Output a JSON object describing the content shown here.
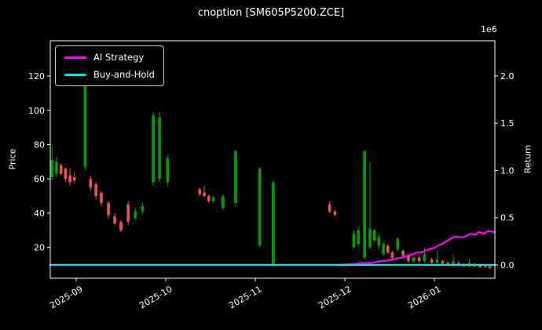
{
  "chart_data": {
    "type": "candlestick",
    "title": "cnoption [SM605P5200.ZCE]",
    "ylabel": "Price",
    "y2label": "Return",
    "y2_offset_label": "1e6",
    "x_tick_labels": [
      "2025-09",
      "2025-10",
      "2025-11",
      "2025-12",
      "2026-01"
    ],
    "x_tick_positions": [
      0,
      1,
      2,
      3,
      4
    ],
    "xlim": [
      -0.29,
      4.675
    ],
    "price_ticks": [
      20,
      40,
      60,
      80,
      100,
      120
    ],
    "price_ylim": [
      2,
      140.6
    ],
    "return_ticks": [
      0.0,
      0.5,
      1.0,
      1.5,
      2.0
    ],
    "return_ylim": [
      -0.141,
      2.373
    ],
    "grid": false,
    "legend_position": "upper left",
    "colors": {
      "background": "#000000",
      "text": "#ffffff",
      "spine": "#ffffff",
      "up": "#00a000",
      "down": "#ef5350"
    },
    "candle_fields": [
      "x",
      "open",
      "high",
      "low",
      "close"
    ],
    "candles": [
      [
        -0.27,
        61,
        80,
        59,
        71
      ],
      [
        -0.22,
        63,
        73,
        61,
        70
      ],
      [
        -0.17,
        68,
        69,
        62,
        63
      ],
      [
        -0.12,
        66,
        67,
        58,
        60
      ],
      [
        -0.07,
        62,
        66,
        56,
        58
      ],
      [
        -0.02,
        61,
        64,
        57,
        59
      ],
      [
        0.1,
        67,
        119,
        65,
        117
      ],
      [
        0.16,
        60,
        62,
        53,
        55
      ],
      [
        0.22,
        57,
        58,
        48,
        50
      ],
      [
        0.28,
        52,
        53,
        44,
        46
      ],
      [
        0.36,
        46,
        47,
        37,
        39
      ],
      [
        0.43,
        38,
        40,
        33,
        34
      ],
      [
        0.5,
        35,
        36,
        29,
        30
      ],
      [
        0.58,
        45,
        47,
        33,
        35
      ],
      [
        0.66,
        37,
        43,
        36,
        41
      ],
      [
        0.74,
        41,
        46,
        39,
        44
      ],
      [
        0.86,
        58,
        99,
        56,
        97
      ],
      [
        0.93,
        60,
        99,
        58,
        96
      ],
      [
        1.02,
        58,
        74,
        56,
        72
      ],
      [
        1.38,
        54,
        55,
        50,
        51
      ],
      [
        1.43,
        52,
        56,
        49,
        50
      ],
      [
        1.48,
        50,
        51,
        46,
        47
      ],
      [
        1.53,
        47,
        50,
        46,
        49
      ],
      [
        1.64,
        43,
        51,
        42,
        50
      ],
      [
        1.78,
        46,
        77,
        44,
        76
      ],
      [
        2.05,
        21,
        67,
        20,
        66
      ],
      [
        2.2,
        10,
        59,
        9,
        58
      ],
      [
        2.83,
        45,
        47,
        40,
        41
      ],
      [
        2.89,
        41,
        42,
        38,
        39
      ],
      [
        3.1,
        20,
        30,
        19,
        28
      ],
      [
        3.15,
        22,
        32,
        21,
        30
      ],
      [
        3.22,
        14,
        77,
        13,
        76
      ],
      [
        3.28,
        20,
        70,
        19,
        31
      ],
      [
        3.33,
        24,
        31,
        23,
        30
      ],
      [
        3.38,
        21,
        28,
        19,
        26
      ],
      [
        3.43,
        16,
        23,
        15,
        22
      ],
      [
        3.48,
        21,
        22,
        16,
        17
      ],
      [
        3.53,
        17,
        18,
        13,
        14
      ],
      [
        3.59,
        19,
        26,
        18,
        25
      ],
      [
        3.65,
        18,
        19,
        14,
        15
      ],
      [
        3.71,
        15,
        16,
        11,
        12
      ],
      [
        3.77,
        12,
        15,
        11,
        14
      ],
      [
        3.83,
        14,
        15,
        11,
        12
      ],
      [
        3.89,
        12,
        20,
        11,
        16
      ],
      [
        3.97,
        13,
        14,
        10,
        11
      ],
      [
        4.03,
        11,
        18,
        10,
        13
      ],
      [
        4.09,
        12,
        13,
        10,
        10.5
      ],
      [
        4.15,
        11,
        12,
        9.5,
        10
      ],
      [
        4.21,
        10,
        16,
        9,
        12
      ],
      [
        4.27,
        11,
        12,
        9,
        9.5
      ],
      [
        4.33,
        10,
        11,
        8.5,
        9
      ],
      [
        4.39,
        9,
        13,
        8.5,
        11
      ],
      [
        4.45,
        10,
        11,
        8.5,
        9
      ],
      [
        4.51,
        9.5,
        10.5,
        8,
        8.5
      ],
      [
        4.57,
        9,
        10,
        8,
        8.5
      ],
      [
        4.62,
        9,
        9.5,
        7.5,
        8
      ]
    ],
    "series": [
      {
        "name": "AI Strategy",
        "color": "#ff00ff",
        "points": [
          [
            -0.29,
            0
          ],
          [
            2.9,
            0
          ],
          [
            3.0,
            0.005
          ],
          [
            3.1,
            0.01
          ],
          [
            3.2,
            0.02
          ],
          [
            3.3,
            0.02
          ],
          [
            3.4,
            0.04
          ],
          [
            3.5,
            0.05
          ],
          [
            3.55,
            0.06
          ],
          [
            3.6,
            0.07
          ],
          [
            3.65,
            0.08
          ],
          [
            3.7,
            0.1
          ],
          [
            3.75,
            0.11
          ],
          [
            3.8,
            0.13
          ],
          [
            3.85,
            0.13
          ],
          [
            3.9,
            0.15
          ],
          [
            3.95,
            0.17
          ],
          [
            4.0,
            0.18
          ],
          [
            4.05,
            0.21
          ],
          [
            4.1,
            0.23
          ],
          [
            4.15,
            0.26
          ],
          [
            4.2,
            0.29
          ],
          [
            4.25,
            0.3
          ],
          [
            4.3,
            0.29
          ],
          [
            4.35,
            0.3
          ],
          [
            4.4,
            0.33
          ],
          [
            4.45,
            0.32
          ],
          [
            4.5,
            0.35
          ],
          [
            4.55,
            0.33
          ],
          [
            4.6,
            0.36
          ],
          [
            4.65,
            0.35
          ],
          [
            4.675,
            0.35
          ]
        ]
      },
      {
        "name": "Buy-and-Hold",
        "color": "#00e6e6",
        "points": [
          [
            -0.29,
            0
          ],
          [
            4.675,
            0
          ]
        ]
      }
    ]
  }
}
